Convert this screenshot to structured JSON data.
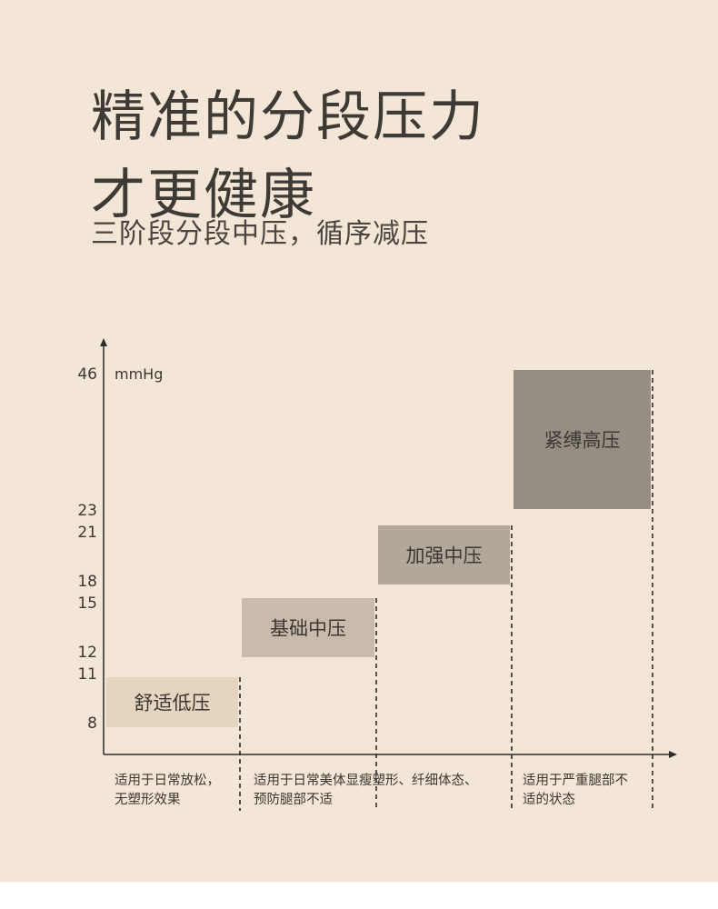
{
  "header": {
    "title_line1": "精准的分段压力",
    "title_line2": "才更健康",
    "subtitle": "三阶段分段中压，循序减压"
  },
  "chart_data": {
    "type": "bar",
    "unit_label": "mmHg",
    "y_ticks": [
      8,
      11,
      12,
      15,
      18,
      21,
      23,
      46
    ],
    "bars": [
      {
        "label": "舒适低压",
        "from": 8,
        "to": 11,
        "color": "#e4d4c0",
        "text_color": "#3b3733"
      },
      {
        "label": "基础中压",
        "from": 12,
        "to": 15,
        "color": "#c8bbab",
        "text_color": "#3b3733"
      },
      {
        "label": "加强中压",
        "from": 18,
        "to": 21,
        "color": "#b1a89b",
        "text_color": "#3b3733"
      },
      {
        "label": "紧缚高压",
        "from": 23,
        "to": 46,
        "color": "#968e82",
        "text_color": "#3b3733"
      }
    ],
    "descriptions": [
      [
        "适用于日常放松，",
        "无塑形效果"
      ],
      [
        "适用于日常美体显瘦塑形、纤细体态、",
        "预防腿部不适"
      ],
      [
        "适用于严重腿部不",
        "适的状态"
      ]
    ]
  }
}
